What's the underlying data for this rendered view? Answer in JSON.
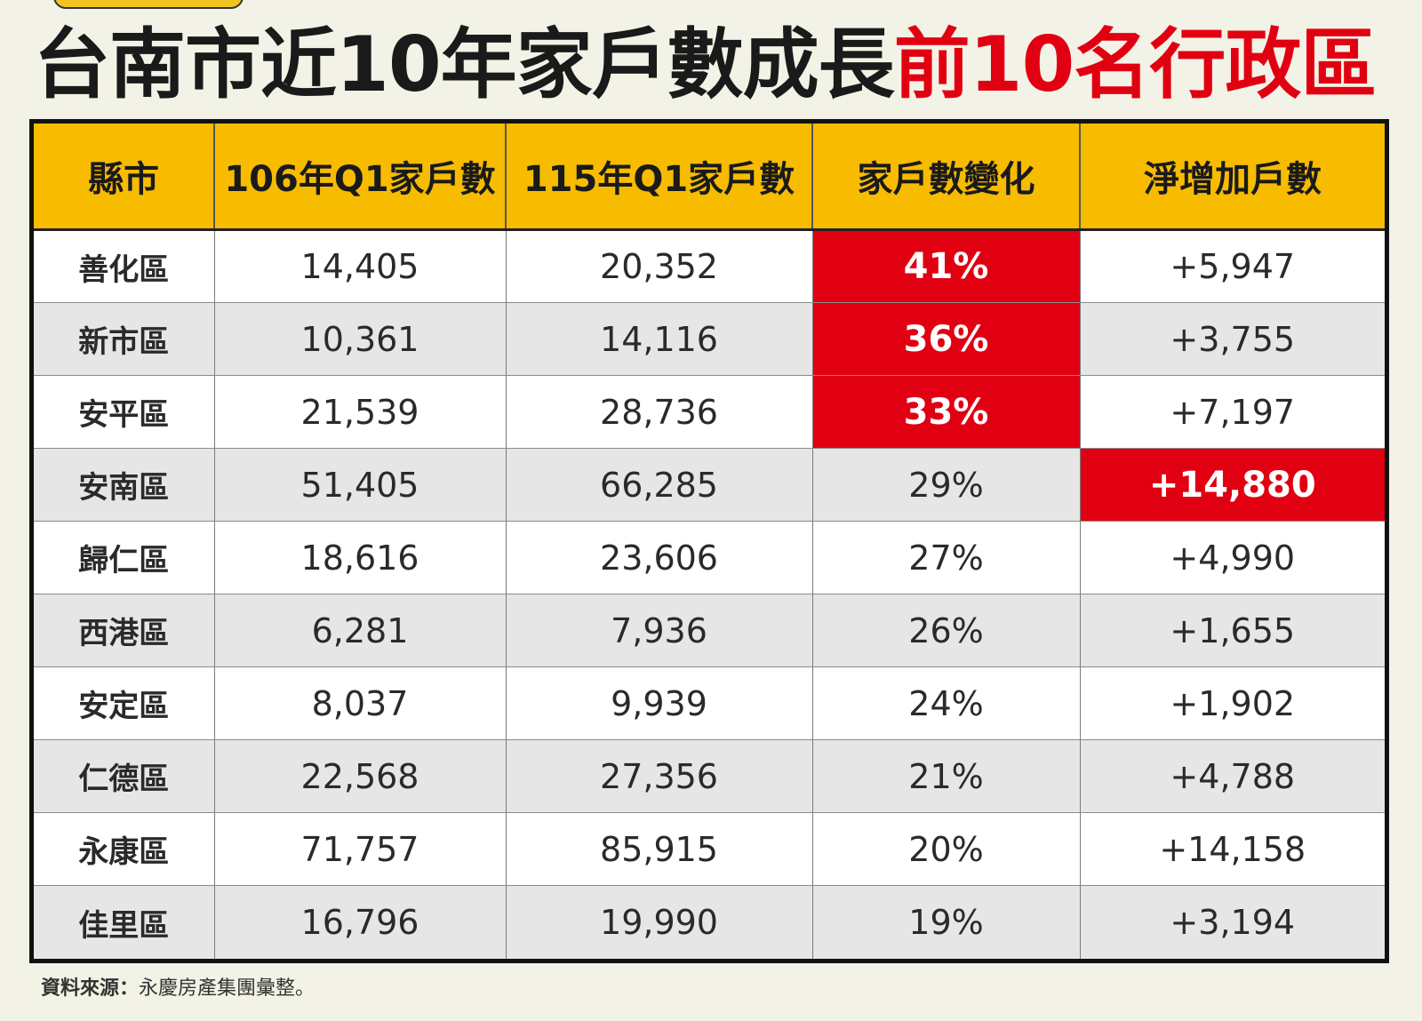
{
  "title": {
    "main": "台南市近10年家戶數成長",
    "accent": "前10名行政區"
  },
  "colors": {
    "accent": "#e10012",
    "header_bg": "#f7bc00",
    "page_bg": "#f3f2e6",
    "row_alt": "#e6e6e6"
  },
  "chart_data": {
    "type": "table",
    "columns": [
      "縣市",
      "106年Q1家戶數",
      "115年Q1家戶數",
      "家戶數變化",
      "淨增加戶數"
    ],
    "rows": [
      {
        "district": "善化區",
        "q1_106": "14,405",
        "q1_115": "20,352",
        "change": "41%",
        "net": "+5,947",
        "highlight_change": true,
        "highlight_net": false
      },
      {
        "district": "新市區",
        "q1_106": "10,361",
        "q1_115": "14,116",
        "change": "36%",
        "net": "+3,755",
        "highlight_change": true,
        "highlight_net": false
      },
      {
        "district": "安平區",
        "q1_106": "21,539",
        "q1_115": "28,736",
        "change": "33%",
        "net": "+7,197",
        "highlight_change": true,
        "highlight_net": false
      },
      {
        "district": "安南區",
        "q1_106": "51,405",
        "q1_115": "66,285",
        "change": "29%",
        "net": "+14,880",
        "highlight_change": false,
        "highlight_net": true
      },
      {
        "district": "歸仁區",
        "q1_106": "18,616",
        "q1_115": "23,606",
        "change": "27%",
        "net": "+4,990",
        "highlight_change": false,
        "highlight_net": false
      },
      {
        "district": "西港區",
        "q1_106": "6,281",
        "q1_115": "7,936",
        "change": "26%",
        "net": "+1,655",
        "highlight_change": false,
        "highlight_net": false
      },
      {
        "district": "安定區",
        "q1_106": "8,037",
        "q1_115": "9,939",
        "change": "24%",
        "net": "+1,902",
        "highlight_change": false,
        "highlight_net": false
      },
      {
        "district": "仁德區",
        "q1_106": "22,568",
        "q1_115": "27,356",
        "change": "21%",
        "net": "+4,788",
        "highlight_change": false,
        "highlight_net": false
      },
      {
        "district": "永康區",
        "q1_106": "71,757",
        "q1_115": "85,915",
        "change": "20%",
        "net": "+14,158",
        "highlight_change": false,
        "highlight_net": false
      },
      {
        "district": "佳里區",
        "q1_106": "16,796",
        "q1_115": "19,990",
        "change": "19%",
        "net": "+3,194",
        "highlight_change": false,
        "highlight_net": false
      }
    ]
  },
  "source": {
    "label": "資料來源：",
    "text": "永慶房產集團彙整。"
  }
}
